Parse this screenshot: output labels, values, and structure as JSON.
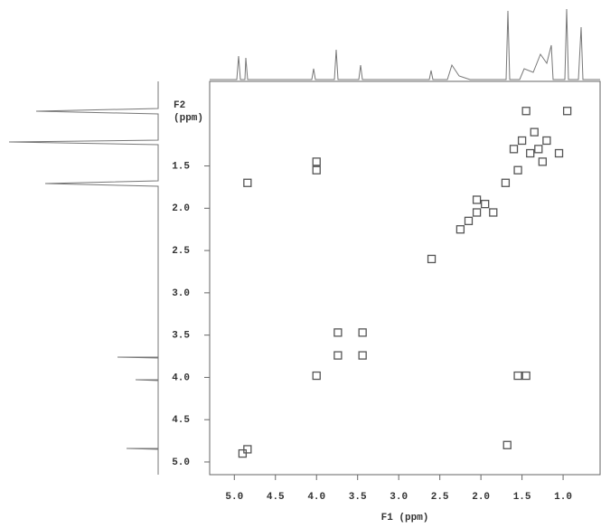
{
  "chart_data": {
    "type": "scatter",
    "xlabel": "F1 (ppm)",
    "ylabel": [
      "F2",
      "(ppm)"
    ],
    "x": [
      4.84,
      4.0,
      4.0,
      2.6,
      3.74,
      3.74,
      3.44,
      3.44,
      4.0,
      1.55,
      1.45,
      1.68,
      4.9,
      4.84,
      0.95,
      1.2,
      1.3,
      1.4,
      1.5,
      1.25,
      1.55,
      1.45,
      1.7,
      1.35,
      1.05,
      1.6,
      1.95,
      2.05,
      2.15,
      2.25,
      2.05,
      1.85
    ],
    "y": [
      1.7,
      1.45,
      1.55,
      2.6,
      3.47,
      3.74,
      3.47,
      3.74,
      3.98,
      3.98,
      3.98,
      4.8,
      4.9,
      4.85,
      0.85,
      1.2,
      1.3,
      1.35,
      1.2,
      1.45,
      1.55,
      0.85,
      1.7,
      1.1,
      1.35,
      1.3,
      1.95,
      2.05,
      2.15,
      2.25,
      1.9,
      2.05
    ],
    "color": "#555555",
    "xlim": [
      5.3,
      0.55
    ],
    "ylim": [
      0.5,
      5.15
    ],
    "xticks": [
      {
        "value": 5,
        "label": "5.0"
      },
      4.5,
      {
        "value": 4,
        "label": "4.0"
      },
      3.5,
      {
        "value": 3,
        "label": "3.0"
      },
      2.5,
      {
        "value": 2,
        "label": "2.0"
      },
      1.5,
      {
        "value": 1,
        "label": "1.0"
      }
    ],
    "yticks": [
      1.5,
      {
        "value": 2,
        "label": "2.0"
      },
      2.5,
      {
        "value": 3,
        "label": "3.0"
      },
      3.5,
      {
        "value": 4,
        "label": "4.0"
      },
      4.5,
      {
        "value": 5,
        "label": "5.0"
      }
    ]
  }
}
